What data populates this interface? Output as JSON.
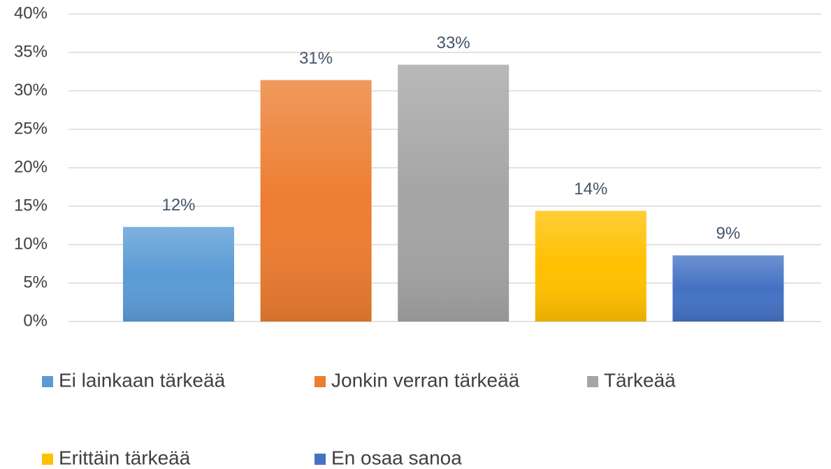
{
  "chart_data": {
    "type": "bar",
    "series": [
      {
        "name": "Ei lainkaan tärkeää",
        "color": "#5b9bd5",
        "values": [
          12.3
        ],
        "value_labels": [
          "12%"
        ]
      },
      {
        "name": "Jonkin verran tärkeää",
        "color": "#ed7d31",
        "values": [
          31.4
        ],
        "value_labels": [
          "31%"
        ]
      },
      {
        "name": "Tärkeää",
        "color": "#a5a5a5",
        "values": [
          33.4
        ],
        "value_labels": [
          "33%"
        ]
      },
      {
        "name": "Erittäin tärkeää",
        "color": "#ffc000",
        "values": [
          14.4
        ],
        "value_labels": [
          "14%"
        ]
      },
      {
        "name": "En osaa sanoa",
        "color": "#4472c4",
        "values": [
          8.6
        ],
        "value_labels": [
          "9%"
        ]
      }
    ],
    "ylim": [
      0,
      40
    ],
    "yticks": [
      {
        "value": 0,
        "label": "0%"
      },
      {
        "value": 5,
        "label": "5%"
      },
      {
        "value": 10,
        "label": "10%"
      },
      {
        "value": 15,
        "label": "15%"
      },
      {
        "value": 20,
        "label": "20%"
      },
      {
        "value": 25,
        "label": "25%"
      },
      {
        "value": 30,
        "label": "30%"
      },
      {
        "value": 35,
        "label": "35%"
      },
      {
        "value": 40,
        "label": "40%"
      }
    ],
    "grid": true
  }
}
